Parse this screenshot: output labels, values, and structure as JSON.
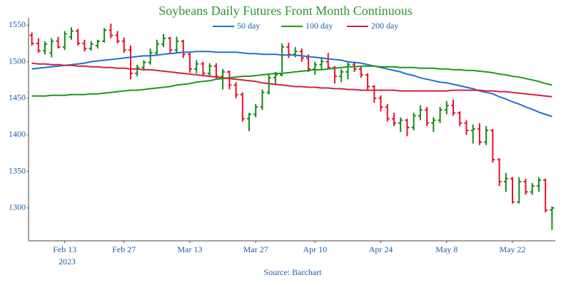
{
  "chart_data": {
    "type": "ohlc",
    "title": "Soybeans Daily Futures Front Month Continuous",
    "source": "Source: Barchart",
    "x": [
      "2023-02-06",
      "2023-02-07",
      "2023-02-08",
      "2023-02-09",
      "2023-02-10",
      "2023-02-13",
      "2023-02-14",
      "2023-02-15",
      "2023-02-16",
      "2023-02-17",
      "2023-02-21",
      "2023-02-22",
      "2023-02-23",
      "2023-02-24",
      "2023-02-27",
      "2023-02-28",
      "2023-03-01",
      "2023-03-02",
      "2023-03-03",
      "2023-03-06",
      "2023-03-07",
      "2023-03-08",
      "2023-03-09",
      "2023-03-10",
      "2023-03-13",
      "2023-03-14",
      "2023-03-15",
      "2023-03-16",
      "2023-03-17",
      "2023-03-20",
      "2023-03-21",
      "2023-03-22",
      "2023-03-23",
      "2023-03-24",
      "2023-03-27",
      "2023-03-28",
      "2023-03-29",
      "2023-03-30",
      "2023-03-31",
      "2023-04-03",
      "2023-04-04",
      "2023-04-05",
      "2023-04-06",
      "2023-04-10",
      "2023-04-11",
      "2023-04-12",
      "2023-04-13",
      "2023-04-14",
      "2023-04-17",
      "2023-04-18",
      "2023-04-19",
      "2023-04-20",
      "2023-04-21",
      "2023-04-24",
      "2023-04-25",
      "2023-04-26",
      "2023-04-27",
      "2023-04-28",
      "2023-05-01",
      "2023-05-02",
      "2023-05-03",
      "2023-05-04",
      "2023-05-05",
      "2023-05-08",
      "2023-05-09",
      "2023-05-10",
      "2023-05-11",
      "2023-05-12",
      "2023-05-15",
      "2023-05-16",
      "2023-05-17",
      "2023-05-18",
      "2023-05-19",
      "2023-05-22",
      "2023-05-23",
      "2023-05-24",
      "2023-05-25",
      "2023-05-26",
      "2023-05-30",
      "2023-05-31"
    ],
    "open": [
      1536,
      1525,
      1515,
      1512,
      1528,
      1520,
      1534,
      1542,
      1525,
      1518,
      1522,
      1528,
      1543,
      1536,
      1528,
      1516,
      1484,
      1492,
      1499,
      1512,
      1524,
      1532,
      1516,
      1528,
      1510,
      1490,
      1497,
      1484,
      1494,
      1480,
      1486,
      1468,
      1455,
      1422,
      1428,
      1438,
      1458,
      1478,
      1482,
      1520,
      1510,
      1514,
      1505,
      1490,
      1496,
      1500,
      1492,
      1480,
      1486,
      1496,
      1490,
      1482,
      1466,
      1450,
      1438,
      1422,
      1416,
      1420,
      1410,
      1426,
      1434,
      1416,
      1420,
      1434,
      1440,
      1430,
      1416,
      1406,
      1408,
      1390,
      1406,
      1366,
      1336,
      1340,
      1308,
      1336,
      1322,
      1330,
      1338,
      1297
    ],
    "high": [
      1540,
      1532,
      1528,
      1532,
      1534,
      1542,
      1547,
      1545,
      1530,
      1528,
      1530,
      1546,
      1552,
      1542,
      1533,
      1522,
      1496,
      1502,
      1518,
      1530,
      1538,
      1534,
      1534,
      1530,
      1512,
      1502,
      1500,
      1498,
      1498,
      1490,
      1488,
      1472,
      1458,
      1430,
      1442,
      1462,
      1482,
      1486,
      1525,
      1526,
      1520,
      1518,
      1510,
      1500,
      1505,
      1512,
      1494,
      1490,
      1500,
      1500,
      1494,
      1484,
      1468,
      1454,
      1442,
      1430,
      1424,
      1422,
      1430,
      1440,
      1438,
      1424,
      1438,
      1446,
      1448,
      1432,
      1420,
      1414,
      1416,
      1412,
      1408,
      1368,
      1348,
      1342,
      1342,
      1340,
      1334,
      1342,
      1340,
      1302
    ],
    "low": [
      1522,
      1512,
      1510,
      1506,
      1518,
      1516,
      1530,
      1522,
      1514,
      1515,
      1518,
      1526,
      1532,
      1525,
      1512,
      1476,
      1480,
      1488,
      1496,
      1508,
      1520,
      1512,
      1512,
      1505,
      1485,
      1484,
      1480,
      1480,
      1476,
      1462,
      1462,
      1450,
      1418,
      1405,
      1424,
      1434,
      1455,
      1470,
      1480,
      1505,
      1506,
      1500,
      1486,
      1482,
      1490,
      1490,
      1470,
      1472,
      1476,
      1486,
      1478,
      1462,
      1444,
      1432,
      1418,
      1412,
      1404,
      1398,
      1406,
      1420,
      1412,
      1404,
      1416,
      1428,
      1426,
      1412,
      1400,
      1388,
      1386,
      1386,
      1362,
      1330,
      1322,
      1306,
      1306,
      1318,
      1318,
      1322,
      1294,
      1270
    ],
    "close": [
      1525,
      1515,
      1524,
      1528,
      1520,
      1538,
      1542,
      1525,
      1518,
      1524,
      1528,
      1543,
      1536,
      1528,
      1516,
      1484,
      1492,
      1499,
      1512,
      1524,
      1532,
      1516,
      1528,
      1510,
      1490,
      1497,
      1484,
      1494,
      1480,
      1486,
      1468,
      1455,
      1422,
      1428,
      1438,
      1458,
      1478,
      1482,
      1520,
      1510,
      1514,
      1505,
      1490,
      1496,
      1500,
      1492,
      1480,
      1486,
      1496,
      1490,
      1482,
      1466,
      1450,
      1438,
      1422,
      1416,
      1420,
      1410,
      1426,
      1434,
      1416,
      1420,
      1434,
      1440,
      1430,
      1416,
      1406,
      1408,
      1390,
      1406,
      1366,
      1336,
      1340,
      1308,
      1336,
      1322,
      1330,
      1338,
      1297,
      1300
    ],
    "increasing_color": "#138a13",
    "decreasing_color": "#e8102a",
    "series": [
      {
        "name": "50 day",
        "color": "#1f6fd6",
        "values": [
          1490,
          1491,
          1492,
          1493,
          1494,
          1495,
          1496,
          1497,
          1498,
          1500,
          1501,
          1502,
          1503,
          1504,
          1505,
          1506,
          1507,
          1508,
          1508,
          1509,
          1510,
          1511,
          1512,
          1513,
          1513,
          1514,
          1514,
          1514,
          1513,
          1513,
          1513,
          1513,
          1512,
          1511,
          1511,
          1510,
          1510,
          1510,
          1509,
          1509,
          1509,
          1508,
          1507,
          1506,
          1505,
          1504,
          1503,
          1502,
          1500,
          1499,
          1498,
          1496,
          1494,
          1492,
          1490,
          1488,
          1486,
          1483,
          1481,
          1478,
          1476,
          1474,
          1472,
          1471,
          1469,
          1467,
          1465,
          1463,
          1460,
          1458,
          1456,
          1452,
          1449,
          1445,
          1442,
          1438,
          1435,
          1431,
          1428,
          1425
        ]
      },
      {
        "name": "100 day",
        "color": "#1a9a1a",
        "values": [
          1453,
          1453,
          1453,
          1454,
          1454,
          1454,
          1455,
          1455,
          1455,
          1456,
          1456,
          1457,
          1458,
          1459,
          1460,
          1461,
          1461,
          1462,
          1463,
          1464,
          1465,
          1466,
          1468,
          1469,
          1470,
          1472,
          1473,
          1474,
          1476,
          1477,
          1478,
          1479,
          1480,
          1480,
          1481,
          1482,
          1483,
          1484,
          1484,
          1485,
          1486,
          1487,
          1488,
          1489,
          1489,
          1490,
          1491,
          1492,
          1493,
          1493,
          1494,
          1494,
          1494,
          1493,
          1493,
          1493,
          1492,
          1492,
          1492,
          1491,
          1491,
          1491,
          1490,
          1490,
          1489,
          1489,
          1488,
          1488,
          1487,
          1486,
          1485,
          1483,
          1482,
          1480,
          1479,
          1477,
          1475,
          1473,
          1470,
          1468
        ]
      },
      {
        "name": "200 day",
        "color": "#d62040",
        "values": [
          1498,
          1497,
          1497,
          1496,
          1496,
          1495,
          1495,
          1494,
          1494,
          1493,
          1493,
          1492,
          1492,
          1491,
          1491,
          1490,
          1490,
          1489,
          1489,
          1488,
          1487,
          1486,
          1485,
          1484,
          1483,
          1482,
          1481,
          1480,
          1479,
          1478,
          1477,
          1476,
          1475,
          1474,
          1473,
          1471,
          1470,
          1469,
          1468,
          1467,
          1466,
          1466,
          1465,
          1465,
          1464,
          1464,
          1463,
          1463,
          1462,
          1462,
          1461,
          1461,
          1461,
          1461,
          1461,
          1461,
          1460,
          1460,
          1460,
          1460,
          1460,
          1460,
          1460,
          1460,
          1461,
          1461,
          1461,
          1461,
          1461,
          1460,
          1460,
          1459,
          1459,
          1458,
          1457,
          1456,
          1455,
          1454,
          1453,
          1452
        ]
      }
    ],
    "ylim": [
      1255,
      1560
    ],
    "yticks": [
      1300,
      1350,
      1400,
      1450,
      1500,
      1550
    ],
    "xticks": [
      {
        "value": "2023-02-13",
        "label": "Feb 13"
      },
      {
        "value": "2023-02-27",
        "label": "Feb 27"
      },
      {
        "value": "2023-03-13",
        "label": "Mar 13"
      },
      {
        "value": "2023-03-27",
        "label": "Mar 27"
      },
      {
        "value": "2023-04-10",
        "label": "Apr 10"
      },
      {
        "value": "2023-04-24",
        "label": "Apr 24"
      },
      {
        "value": "2023-05-08",
        "label": "May 8"
      },
      {
        "value": "2023-05-22",
        "label": "May 22"
      }
    ],
    "x_year_label": "2023",
    "grid": false
  }
}
